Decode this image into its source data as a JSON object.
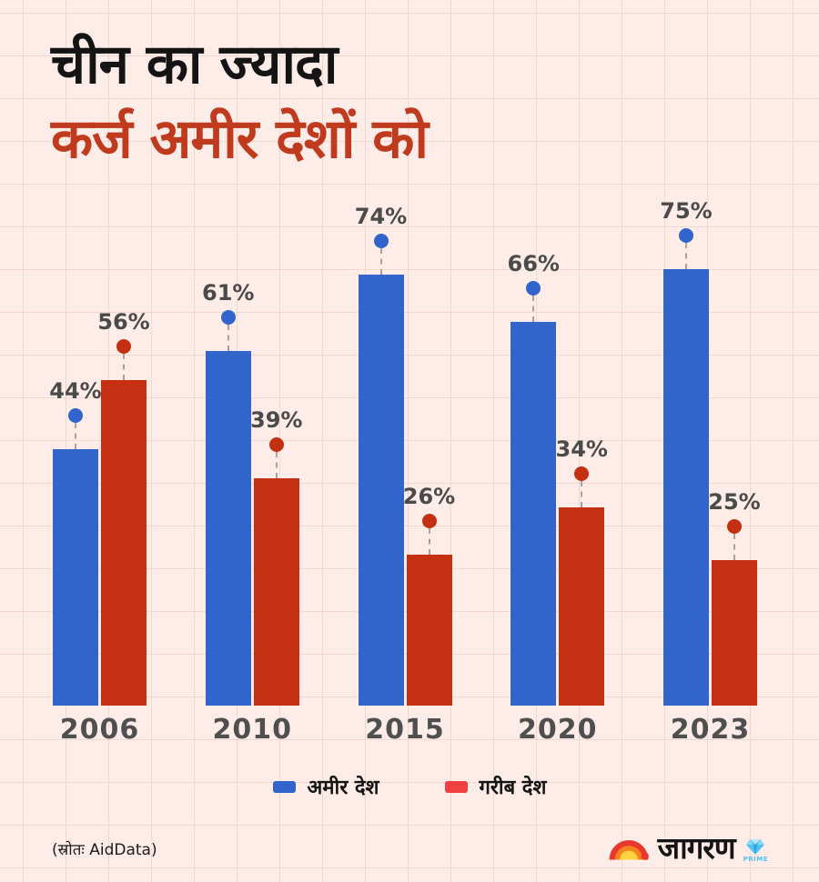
{
  "title": {
    "line1": "चीन का ज्यादा",
    "line2": "कर्ज अमीर देशों को"
  },
  "chart_data": {
    "type": "bar",
    "categories": [
      "2006",
      "2010",
      "2015",
      "2020",
      "2023"
    ],
    "series": [
      {
        "key": "rich-countries",
        "name": "अमीर देश",
        "color": "#3165cb",
        "values": [
          44,
          61,
          74,
          66,
          75
        ]
      },
      {
        "key": "poor-countries",
        "name": "गरीब देश",
        "color": "#c43112",
        "values": [
          56,
          39,
          26,
          34,
          25
        ]
      }
    ],
    "value_suffix": "%",
    "ylim": [
      0,
      100
    ],
    "grid": true,
    "legend_position": "bottom",
    "marker": "dot-with-dashed-stem",
    "value_label_color": "#4a4a4a"
  },
  "legend": {
    "items": [
      {
        "label": "अमीर देश",
        "color": "#3165cb"
      },
      {
        "label": "गरीब देश",
        "color": "#f23f3f"
      }
    ]
  },
  "source": "(स्रोतः AidData)",
  "logo": {
    "brand": "जागरण",
    "sub": "PRIME",
    "sun_colors": {
      "outer": "#e8372c",
      "middle": "#f58220",
      "inner": "#ffd23f"
    },
    "diamond_color": "#54c2f0"
  },
  "colors": {
    "background": "#fdece7",
    "grid_line": "#eed0c7",
    "title_line1": "#141414",
    "title_line2": "#c03a1d",
    "year_label": "#4f4f4f"
  }
}
